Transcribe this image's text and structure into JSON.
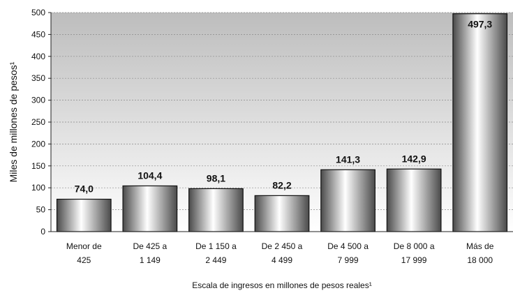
{
  "chart_data": {
    "type": "bar",
    "title": "",
    "ylabel": "Miles de millones de pesos¹",
    "xlabel": "Escala de ingresos en millones de pesos reales¹",
    "ylim": [
      0,
      500
    ],
    "yticks": [
      0,
      50,
      100,
      150,
      200,
      250,
      300,
      350,
      400,
      450,
      500
    ],
    "grid": true,
    "categories": [
      [
        "Menor de",
        "425"
      ],
      [
        "De 425 a",
        "1 149"
      ],
      [
        "De 1 150  a",
        "2 449"
      ],
      [
        "De 2 450 a",
        "4 499"
      ],
      [
        "De 4 500 a",
        "7 999"
      ],
      [
        "De 8 000 a",
        "17 999"
      ],
      [
        "Más de",
        "18 000"
      ]
    ],
    "values": [
      74.0,
      104.4,
      98.1,
      82.2,
      141.3,
      142.9,
      497.3
    ],
    "value_labels": [
      "74,0",
      "104,4",
      "98,1",
      "82,2",
      "141,3",
      "142,9",
      "497,3"
    ],
    "colors": {
      "bar_light": "#ffffff",
      "bar_dark": "#4a4a4a",
      "plot_top": "#bdbdbd",
      "plot_bottom": "#ffffff",
      "grid": "#8a8a8a"
    }
  }
}
